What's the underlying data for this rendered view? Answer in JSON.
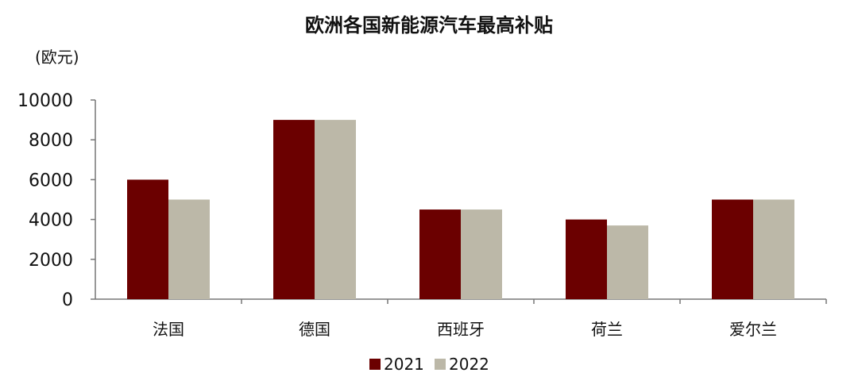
{
  "chart_data": {
    "type": "bar",
    "title": "欧洲各国新能源汽车最高补贴",
    "ylabel": "(欧元)",
    "xlabel": "",
    "categories": [
      "法国",
      "德国",
      "西班牙",
      "荷兰",
      "爱尔兰"
    ],
    "series": [
      {
        "name": "2021",
        "values": [
          6000,
          9000,
          4500,
          4000,
          5000
        ],
        "color": "#6b0000"
      },
      {
        "name": "2022",
        "values": [
          5000,
          9000,
          4500,
          3700,
          5000
        ],
        "color": "#bcb8a8"
      }
    ],
    "ylim": [
      0,
      10000
    ],
    "yticks": [
      "0",
      "2000",
      "4000",
      "6000",
      "8000",
      "10000"
    ],
    "grid": false,
    "legend": "bottom"
  }
}
